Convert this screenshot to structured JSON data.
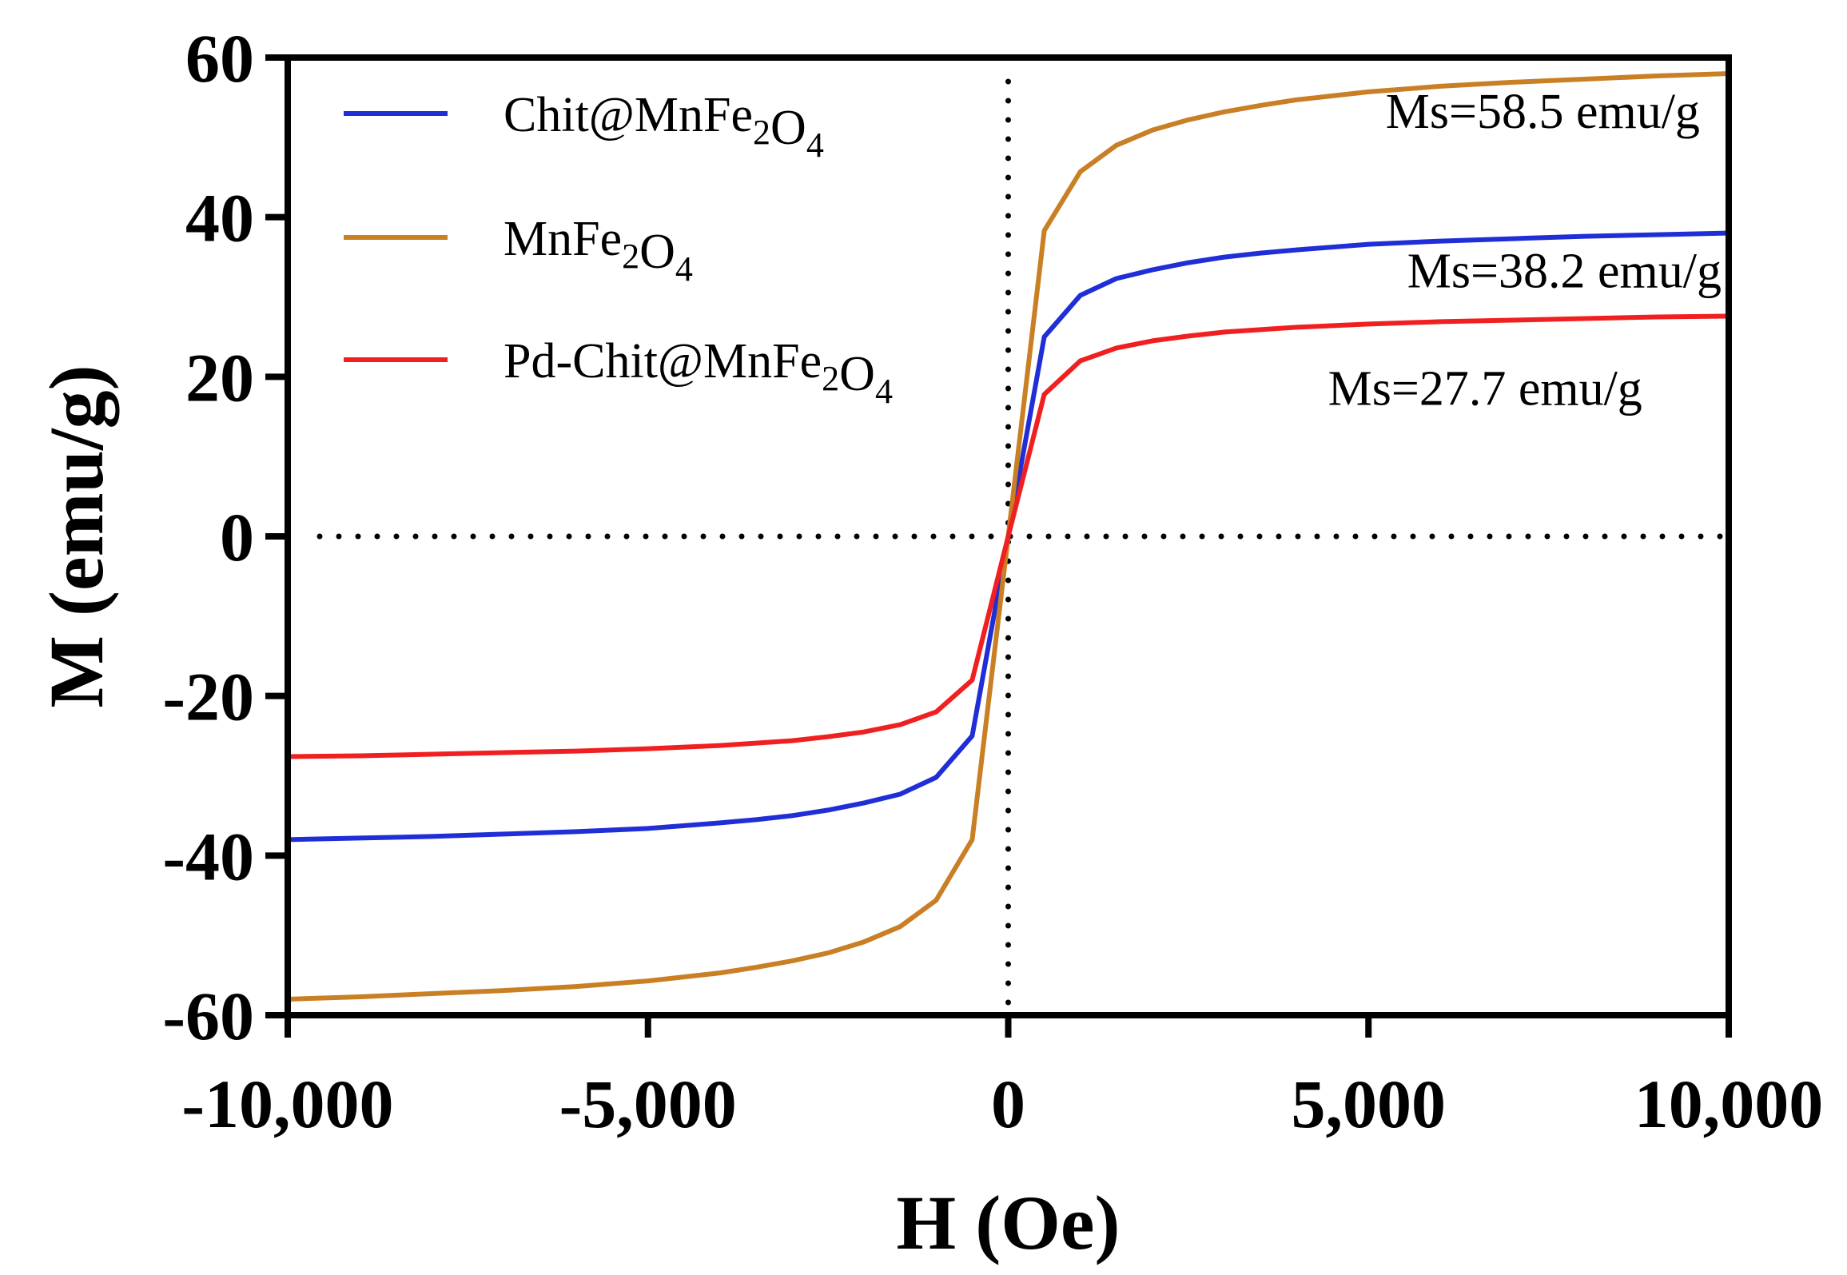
{
  "chart_data": {
    "type": "line",
    "title": "",
    "xlabel": "H (Oe)",
    "ylabel": "M (emu/g)",
    "xlim": [
      -10000,
      10000
    ],
    "ylim": [
      -60,
      60
    ],
    "xticks": [
      -10000,
      -5000,
      0,
      5000,
      10000
    ],
    "xtick_labels": [
      "-10,000",
      "-5,000",
      "0",
      "5,000",
      "10,000"
    ],
    "yticks": [
      -60,
      -40,
      -20,
      0,
      20,
      40,
      60
    ],
    "ytick_labels": [
      "-60",
      "-40",
      "-20",
      "0",
      "20",
      "40",
      "60"
    ],
    "grid": false,
    "legend_position": "top-left",
    "x": [
      -10000,
      -9000,
      -8000,
      -7000,
      -6000,
      -5000,
      -4000,
      -3500,
      -3000,
      -2500,
      -2000,
      -1500,
      -1000,
      -500,
      0,
      500,
      1000,
      1500,
      2000,
      2500,
      3000,
      3500,
      4000,
      5000,
      6000,
      7000,
      8000,
      9000,
      10000
    ],
    "series": [
      {
        "name": "Chit@MnFe2O4",
        "legend_main": [
          "Chit@MnFe",
          "O"
        ],
        "legend_subs": [
          "2",
          "4"
        ],
        "color": "#1f2ed6",
        "values": [
          -38.0,
          -37.8,
          -37.6,
          -37.3,
          -37.0,
          -36.6,
          -35.9,
          -35.5,
          -35.0,
          -34.3,
          -33.4,
          -32.3,
          -30.2,
          -25.0,
          0,
          25.0,
          30.2,
          32.3,
          33.4,
          34.3,
          35.0,
          35.5,
          35.9,
          36.6,
          37.0,
          37.3,
          37.6,
          37.8,
          38.0
        ]
      },
      {
        "name": "MnFe2O4",
        "legend_main": [
          "MnFe",
          "O"
        ],
        "legend_subs": [
          "2",
          "4"
        ],
        "color": "#c97f24",
        "values": [
          -58.0,
          -57.7,
          -57.3,
          -56.9,
          -56.4,
          -55.7,
          -54.7,
          -54.0,
          -53.2,
          -52.2,
          -50.8,
          -48.9,
          -45.6,
          -38.0,
          0,
          38.3,
          45.7,
          49.0,
          50.9,
          52.2,
          53.2,
          54.0,
          54.7,
          55.7,
          56.4,
          56.9,
          57.3,
          57.7,
          58.0
        ]
      },
      {
        "name": "Pd-Chit@MnFe2O4",
        "legend_main": [
          "Pd-Chit@MnFe",
          "O"
        ],
        "legend_subs": [
          "2",
          "4"
        ],
        "color": "#f02020",
        "values": [
          -27.6,
          -27.5,
          -27.3,
          -27.1,
          -26.9,
          -26.6,
          -26.2,
          -25.9,
          -25.6,
          -25.1,
          -24.5,
          -23.6,
          -22.0,
          -18.0,
          0,
          17.8,
          22.0,
          23.6,
          24.5,
          25.1,
          25.6,
          25.9,
          26.2,
          26.6,
          26.9,
          27.1,
          27.3,
          27.5,
          27.6
        ]
      }
    ],
    "annotations": [
      {
        "text": "Ms=58.5 emu/g",
        "series": "MnFe2O4",
        "x": 9600,
        "y": 51.2,
        "anchor": "end"
      },
      {
        "text": "Ms=38.2 emu/g",
        "series": "Chit@MnFe2O4",
        "x": 9900,
        "y": 31.2,
        "anchor": "end"
      },
      {
        "text": "Ms=27.7 emu/g",
        "series": "Pd-Chit@MnFe2O4",
        "x": 8800,
        "y": 16.5,
        "anchor": "end"
      }
    ],
    "reference_lines": [
      {
        "orientation": "horizontal",
        "value": 0,
        "style": "dotted"
      },
      {
        "orientation": "vertical",
        "value": 0,
        "style": "dotted"
      }
    ]
  }
}
